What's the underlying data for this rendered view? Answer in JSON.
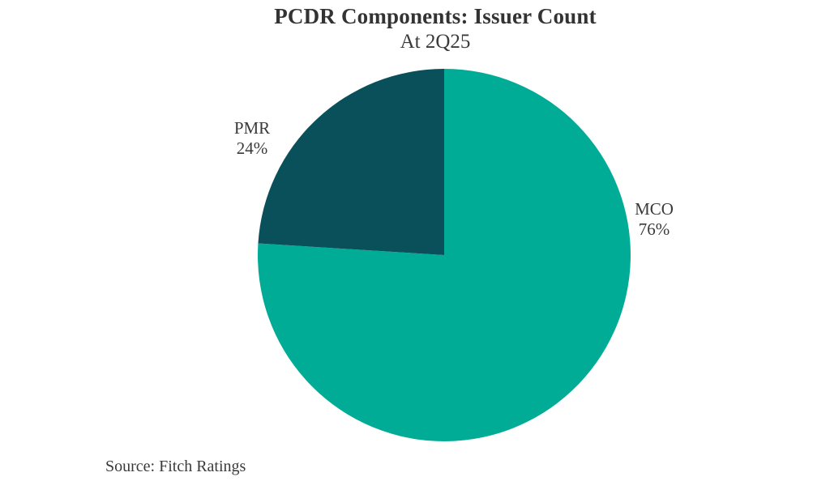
{
  "chart_data": {
    "type": "pie",
    "title": "PCDR Components: Issuer Count",
    "subtitle": "At 2Q25",
    "source": "Source: Fitch Ratings",
    "start_angle_deg": -90,
    "direction": "clockwise",
    "legend_position": "none",
    "background_color": "#ffffff",
    "text_color": "#3a3a3a",
    "slices": [
      {
        "label": "MCO",
        "value": 76,
        "percent_label": "76%",
        "color": "#00AC96"
      },
      {
        "label": "PMR",
        "value": 24,
        "percent_label": "24%",
        "color": "#0A505A"
      }
    ]
  }
}
